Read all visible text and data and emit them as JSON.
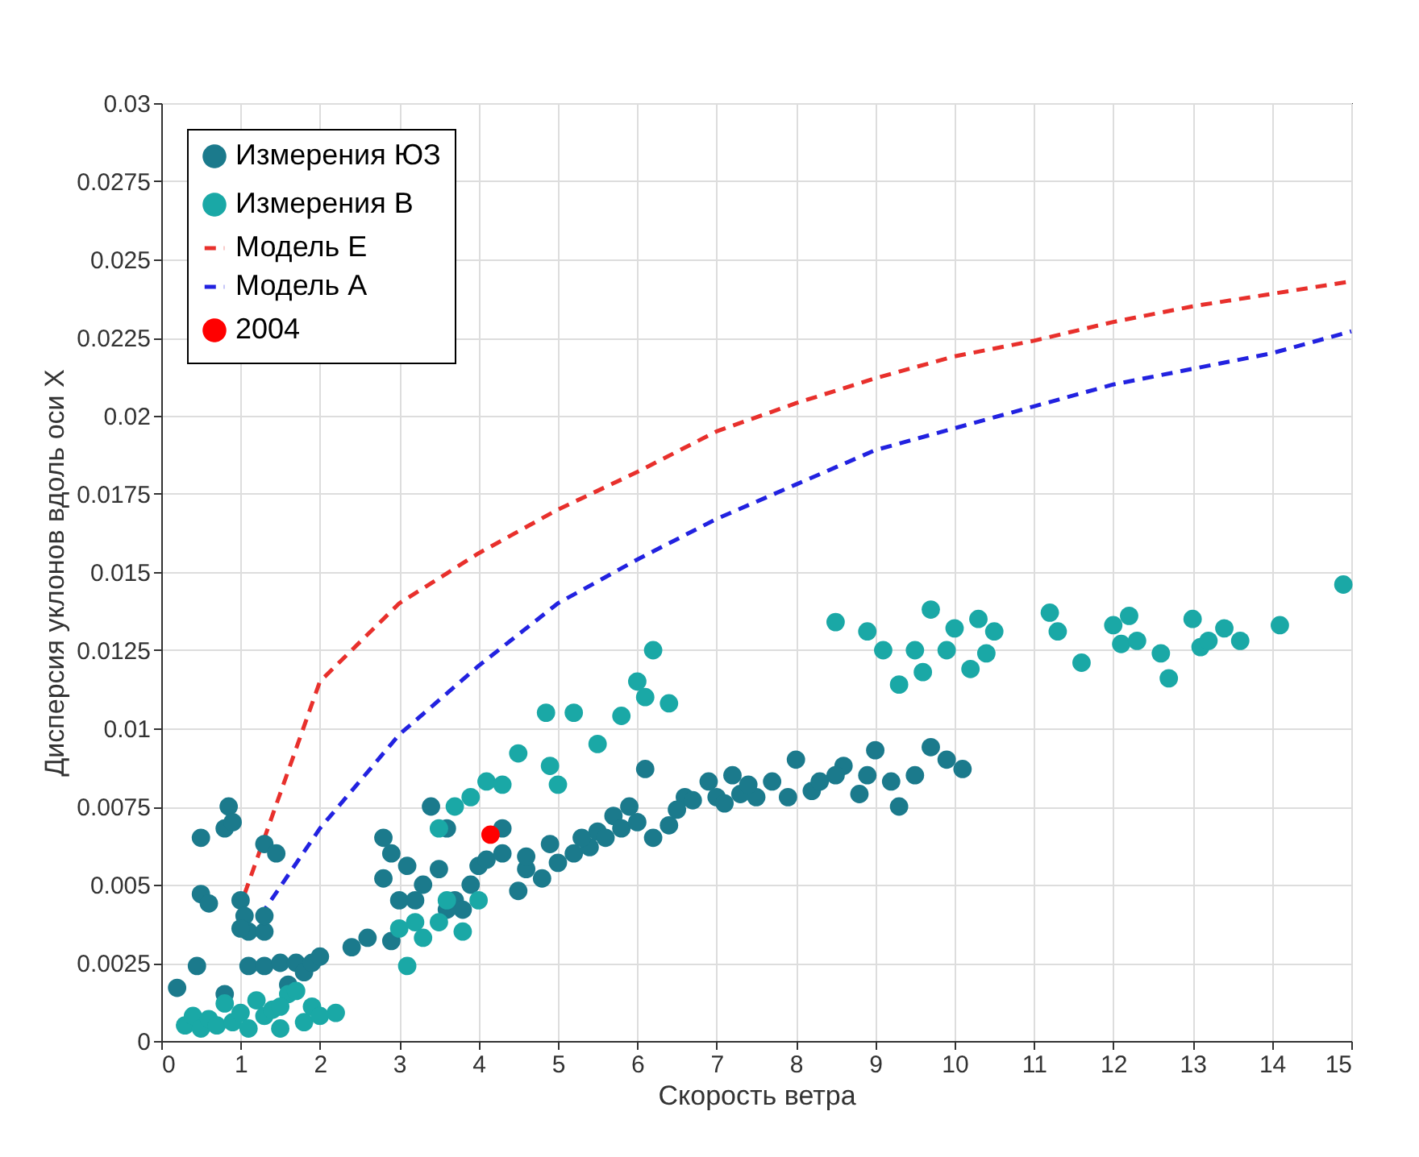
{
  "chart_data": {
    "type": "scatter",
    "xlabel": "Скорость ветра",
    "ylabel": "Дисперсия уклонов вдоль оси X",
    "xlim": [
      0,
      15
    ],
    "xticks": [
      0,
      1,
      2,
      3,
      4,
      5,
      6,
      7,
      8,
      9,
      10,
      11,
      12,
      13,
      14,
      15
    ],
    "ylim": [
      0,
      0.03
    ],
    "yticks": [
      0,
      0.0025,
      0.005,
      0.0075,
      0.01,
      0.0125,
      0.015,
      0.0175,
      0.02,
      0.0225,
      0.025,
      0.0275,
      0.03
    ],
    "grid": true,
    "legend": "top left",
    "series": [
      {
        "name": "Измерения ЮЗ",
        "marker": "circle",
        "color": "#1b7a8c",
        "x": [
          0.2,
          0.45,
          0.5,
          0.6,
          0.5,
          0.8,
          0.85,
          0.9,
          1.0,
          1.05,
          1.1,
          1.3,
          1.3,
          1.3,
          1.45,
          1.0,
          1.1,
          1.3,
          1.5,
          1.7,
          1.8,
          1.9,
          2.0,
          0.8,
          1.6,
          2.4,
          2.6,
          2.9,
          2.8,
          2.9,
          2.8,
          3.0,
          3.2,
          3.4,
          3.5,
          3.6,
          3.7,
          3.8,
          3.9,
          4.0,
          4.1,
          4.3,
          4.5,
          4.6,
          4.8,
          5.0,
          5.2,
          5.4,
          5.5,
          5.6,
          5.7,
          5.8,
          6.0,
          6.1,
          6.2,
          6.4,
          6.6,
          6.7,
          6.9,
          7.0,
          7.2,
          7.3,
          7.5,
          7.7,
          7.9,
          8.0,
          8.2,
          8.3,
          8.6,
          8.8,
          8.9,
          9.0,
          9.2,
          9.3,
          9.5,
          9.7,
          9.9,
          10.1,
          4.3,
          4.6,
          3.3,
          3.1,
          4.9,
          5.3,
          6.5,
          7.1,
          7.4,
          8.5,
          3.6,
          5.9
        ],
        "values": [
          0.0017,
          0.0024,
          0.0047,
          0.0044,
          0.0065,
          0.0068,
          0.0075,
          0.007,
          0.0045,
          0.004,
          0.0035,
          0.0035,
          0.004,
          0.0063,
          0.006,
          0.0036,
          0.0024,
          0.0024,
          0.0025,
          0.0025,
          0.0022,
          0.0025,
          0.0027,
          0.0015,
          0.0018,
          0.003,
          0.0033,
          0.0032,
          0.0065,
          0.006,
          0.0052,
          0.0045,
          0.0045,
          0.0075,
          0.0055,
          0.0068,
          0.0045,
          0.0042,
          0.005,
          0.0056,
          0.0058,
          0.006,
          0.0048,
          0.0055,
          0.0052,
          0.0057,
          0.006,
          0.0062,
          0.0067,
          0.0065,
          0.0072,
          0.0068,
          0.007,
          0.0087,
          0.0065,
          0.0069,
          0.0078,
          0.0077,
          0.0083,
          0.0078,
          0.0085,
          0.0079,
          0.0078,
          0.0083,
          0.0078,
          0.009,
          0.008,
          0.0083,
          0.0088,
          0.0079,
          0.0085,
          0.0093,
          0.0083,
          0.0075,
          0.0085,
          0.0094,
          0.009,
          0.0087,
          0.0068,
          0.0059,
          0.005,
          0.0056,
          0.0063,
          0.0065,
          0.0074,
          0.0076,
          0.0082,
          0.0085,
          0.0042,
          0.0075
        ]
      },
      {
        "name": "Измерения В",
        "marker": "circle",
        "color": "#1aa8a6",
        "x": [
          0.3,
          0.4,
          0.5,
          0.6,
          0.7,
          0.8,
          0.9,
          1.0,
          1.1,
          1.2,
          1.3,
          1.4,
          1.5,
          1.6,
          1.7,
          1.8,
          1.9,
          2.0,
          2.2,
          1.5,
          3.1,
          3.0,
          3.2,
          3.3,
          3.5,
          3.6,
          3.8,
          4.0,
          3.7,
          3.9,
          4.1,
          4.3,
          3.5,
          4.5,
          4.9,
          4.85,
          5.0,
          5.2,
          5.5,
          5.8,
          6.0,
          6.2,
          6.4,
          6.1,
          8.5,
          8.9,
          9.1,
          9.3,
          9.5,
          9.7,
          9.9,
          9.6,
          10.0,
          10.2,
          10.3,
          10.5,
          10.4,
          11.2,
          11.3,
          11.6,
          12.0,
          12.1,
          12.2,
          12.3,
          12.6,
          12.7,
          13.0,
          13.1,
          13.2,
          13.4,
          13.6,
          14.1,
          14.9
        ],
        "values": [
          0.0005,
          0.0008,
          0.0004,
          0.0007,
          0.0005,
          0.0012,
          0.0006,
          0.0009,
          0.0004,
          0.0013,
          0.0008,
          0.001,
          0.0004,
          0.0015,
          0.0016,
          0.0006,
          0.0011,
          0.0008,
          0.0009,
          0.0011,
          0.0024,
          0.0036,
          0.0038,
          0.0033,
          0.0038,
          0.0045,
          0.0035,
          0.0045,
          0.0075,
          0.0078,
          0.0083,
          0.0082,
          0.0068,
          0.0092,
          0.0088,
          0.0105,
          0.0082,
          0.0105,
          0.0095,
          0.0104,
          0.0115,
          0.0125,
          0.0108,
          0.011,
          0.0134,
          0.0131,
          0.0125,
          0.0114,
          0.0125,
          0.0138,
          0.0125,
          0.0118,
          0.0132,
          0.0119,
          0.0135,
          0.0131,
          0.0124,
          0.0137,
          0.0131,
          0.0121,
          0.0133,
          0.0127,
          0.0136,
          0.0128,
          0.0124,
          0.0116,
          0.0135,
          0.0126,
          0.0128,
          0.0132,
          0.0128,
          0.0133,
          0.0146
        ]
      },
      {
        "name": "Модель E",
        "type": "line",
        "line_style": "dashed",
        "color": "#e8302c",
        "x": [
          1.05,
          2,
          3,
          4,
          5,
          6,
          7,
          8,
          9,
          10,
          11,
          12,
          13,
          14,
          15
        ],
        "values": [
          0.0047,
          0.0115,
          0.014,
          0.0156,
          0.017,
          0.0182,
          0.0195,
          0.0204,
          0.0212,
          0.0219,
          0.0224,
          0.023,
          0.0235,
          0.0239,
          0.0243
        ]
      },
      {
        "name": "Модель A",
        "type": "line",
        "line_style": "dashed",
        "color": "#2222e0",
        "x": [
          1.25,
          2,
          3,
          4,
          5,
          6,
          7,
          8,
          9,
          10,
          11,
          12,
          13,
          14,
          15
        ],
        "values": [
          0.004,
          0.0068,
          0.0098,
          0.012,
          0.014,
          0.0154,
          0.0167,
          0.0178,
          0.0189,
          0.0196,
          0.0203,
          0.021,
          0.0215,
          0.022,
          0.0227
        ]
      },
      {
        "name": "2004",
        "marker": "circle",
        "color": "#ff0000",
        "x": [
          4.15
        ],
        "values": [
          0.0066
        ]
      }
    ]
  }
}
